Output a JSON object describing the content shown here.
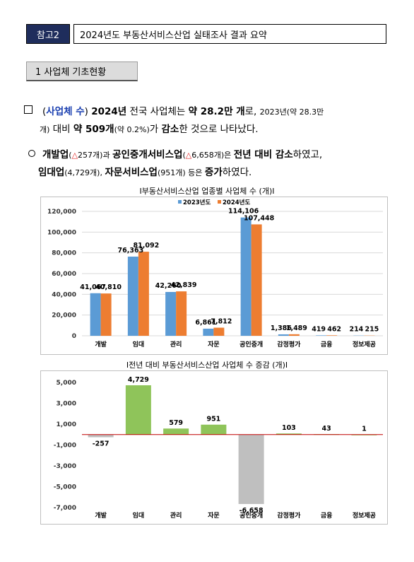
{
  "header": {
    "tag": "참고2",
    "title": "2024년도 부동산서비스산업 실태조사 결과 요약"
  },
  "section": {
    "title": "1  사업체 기초현황"
  },
  "summary": {
    "label": "사업체 수",
    "line1_a": "2024년",
    "line1_b": " 전국 사업체는 ",
    "line1_c": "약   28.2만 개",
    "line1_d": "로, ",
    "line1_e": "2023년(약 28.3만",
    "line2_a": "개)",
    "line2_b": " 대비 ",
    "line2_c": "약  509개",
    "line2_d": "(약 0.2%)",
    "line2_e": "가 ",
    "line2_f": "감소",
    "line2_g": "한 것으로 나타났다."
  },
  "detail": {
    "a1": "개발업",
    "a2": "(",
    "a3": "△",
    "a4": "257개)과 ",
    "a5": "공인중개서비스업",
    "a6": "(",
    "a7": "△",
    "a8": "6,658개)은 ",
    "a9": "전년 대비 감소",
    "a10": "하였고,",
    "b1": "임대업",
    "b2": "(4,729개), ",
    "b3": "자문서비스업",
    "b4": "(951개) 등은 ",
    "b5": "증가",
    "b6": "하였다."
  },
  "chart_data": [
    {
      "type": "bar",
      "title": "I부동산서비스산업 업종별 사업체 수 (개)I",
      "categories": [
        "개발",
        "임대",
        "관리",
        "자문",
        "공인중개",
        "감정평가",
        "금융",
        "정보제공"
      ],
      "series": [
        {
          "name": "2023년도",
          "color": "#5b9bd5",
          "values": [
            41067,
            76363,
            42260,
            6861,
            114106,
            1386,
            419,
            214
          ],
          "labels": [
            "41,067",
            "76,363",
            "42,260",
            "6,861",
            "114,106",
            "1,386",
            "419",
            "214"
          ]
        },
        {
          "name": "2024년도",
          "color": "#ed7d31",
          "values": [
            40810,
            81092,
            42839,
            7812,
            107448,
            1489,
            462,
            215
          ],
          "labels": [
            "40,810",
            "81,092",
            "42,839",
            "7,812",
            "107,448",
            "1,489",
            "462",
            "215"
          ]
        }
      ],
      "yticks": [
        "120,000",
        "100,000",
        "80,000",
        "60,000",
        "40,000",
        "20,000",
        "0"
      ],
      "ylim": [
        0,
        120000
      ],
      "legend": "top-center",
      "grid": true
    },
    {
      "type": "bar",
      "title": "I전년 대비 부동산서비스산업 사업체 수 증감 (개)I",
      "categories": [
        "개발",
        "임대",
        "관리",
        "자문",
        "공인중개",
        "감정평가",
        "금융",
        "정보제공"
      ],
      "values": [
        -257,
        4729,
        579,
        951,
        -6658,
        103,
        43,
        1
      ],
      "labels": [
        "-257",
        "4,729",
        "579",
        "951",
        "-6,658",
        "103",
        "43",
        "1"
      ],
      "colors": {
        "positive": "#8fc45a",
        "negative": "#bfbfbf"
      },
      "yticks": [
        "5,000",
        "3,000",
        "1,000",
        "-1,000",
        "-3,000",
        "-5,000",
        "-7,000"
      ],
      "ylim": [
        -7000,
        5000
      ],
      "grid": false
    }
  ]
}
